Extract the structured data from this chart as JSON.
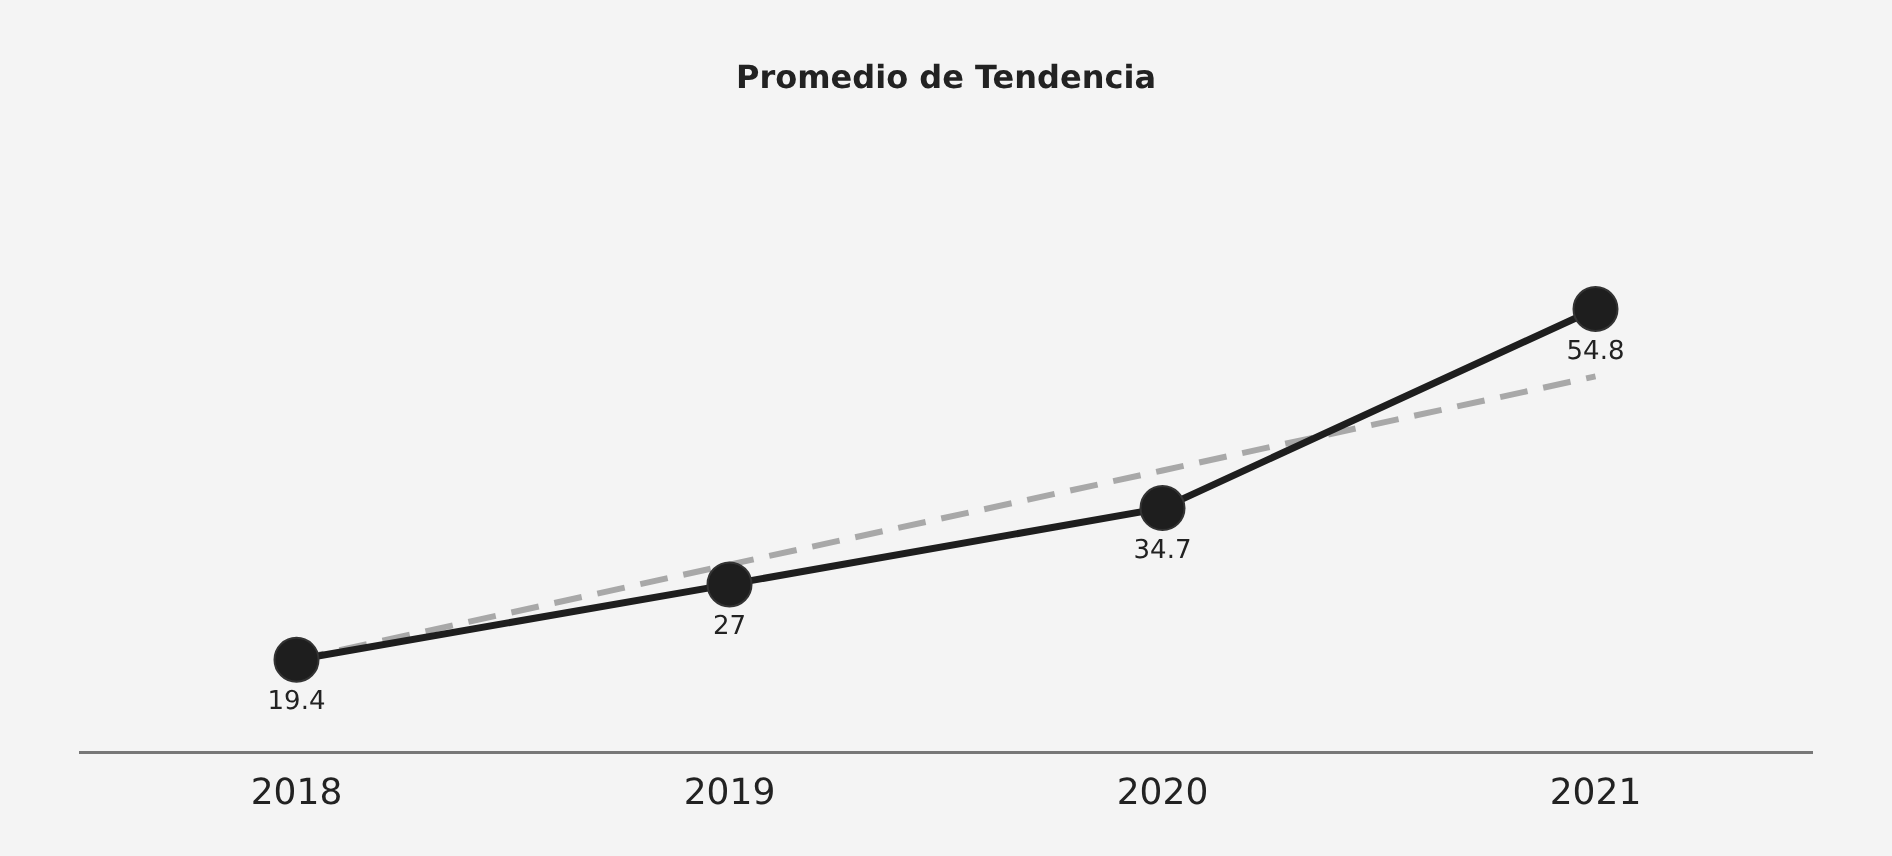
{
  "chart_data": {
    "type": "line",
    "title": "Promedio de Tendencia",
    "categories": [
      "2018",
      "2019",
      "2020",
      "2021"
    ],
    "series": [
      {
        "color": "#1e1e1e",
        "values": [
          19.4,
          27,
          34.7,
          54.8
        ],
        "marker": "circle",
        "line_style": "solid",
        "data_labels": true
      },
      {
        "color": "#a8a8a8",
        "values": [
          19.4,
          29,
          38.5,
          48
        ],
        "marker": "none",
        "line_style": "dashed"
      }
    ],
    "tick_labels": "x",
    "legend": false
  }
}
